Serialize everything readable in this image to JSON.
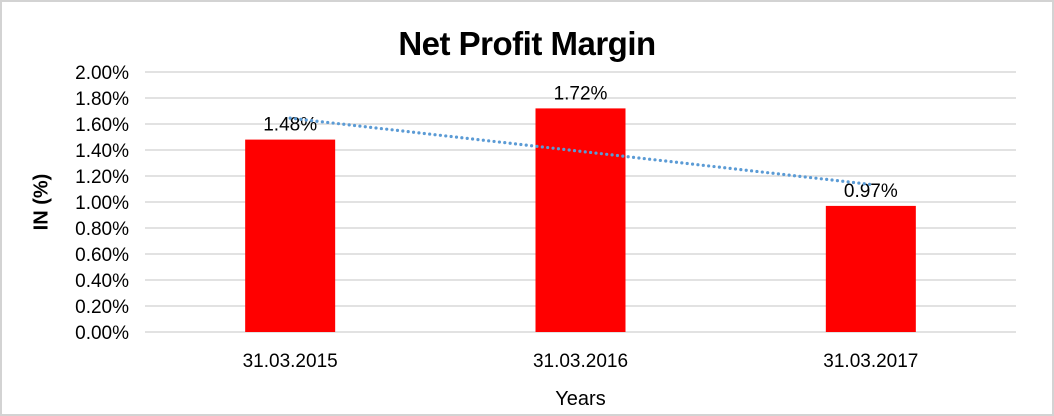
{
  "chart_data": {
    "type": "bar",
    "title": "Net Profit Margin",
    "xlabel": "Years",
    "ylabel": "IN (%)",
    "categories": [
      "31.03.2015",
      "31.03.2016",
      "31.03.2017"
    ],
    "values": [
      1.48,
      1.72,
      0.97
    ],
    "data_labels": [
      "1.48%",
      "1.72%",
      "0.97%"
    ],
    "ylim": [
      0,
      2.0
    ],
    "ytick_step": 0.2,
    "ytick_labels": [
      "0.00%",
      "0.20%",
      "0.40%",
      "0.60%",
      "0.80%",
      "1.00%",
      "1.20%",
      "1.40%",
      "1.60%",
      "1.80%",
      "2.00%"
    ],
    "grid": true,
    "legend_position": "none",
    "bar_color": "#FF0000",
    "trendline": {
      "type": "linear",
      "style": "dotted",
      "color": "#5B9BD5"
    },
    "gridline_color": "#D9D9D9",
    "text_color": "#000000",
    "border_color": "#D3D3D3",
    "background_color": "#FFFFFF"
  }
}
